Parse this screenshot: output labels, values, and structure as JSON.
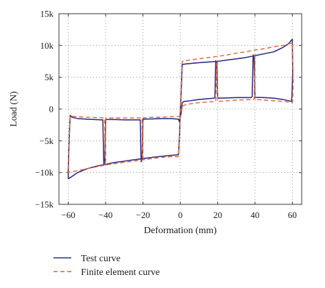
{
  "chart_data": {
    "type": "line",
    "title": "",
    "xlabel": "Deformation (mm)",
    "ylabel": "Load (N)",
    "xlim": [
      -65,
      65
    ],
    "ylim": [
      -15000,
      15000
    ],
    "xticks": [
      -60,
      -40,
      -20,
      0,
      20,
      40,
      60
    ],
    "xtick_labels": [
      "−60",
      "−40",
      "−20",
      "0",
      "20",
      "40",
      "60"
    ],
    "yticks": [
      -15000,
      -10000,
      -5000,
      0,
      5000,
      10000,
      15000
    ],
    "ytick_labels": [
      "−15k",
      "−10k",
      "−5k",
      "0",
      "5k",
      "10k",
      "15k"
    ],
    "grid": true,
    "grid_style": "dotted",
    "legend_position": "bottom-left, below plot",
    "series": [
      {
        "name": "Test curve",
        "color": "#2e2d86",
        "style": "solid",
        "points": [
          [
            -60,
            -11000
          ],
          [
            -58,
            -10600
          ],
          [
            -55,
            -10000
          ],
          [
            -50,
            -9400
          ],
          [
            -45,
            -9000
          ],
          [
            -40,
            -8700
          ],
          [
            -35,
            -8400
          ],
          [
            -30,
            -8200
          ],
          [
            -25,
            -8000
          ],
          [
            -20,
            -7800
          ],
          [
            -15,
            -7600
          ],
          [
            -10,
            -7450
          ],
          [
            -5,
            -7300
          ],
          [
            -1,
            -7200
          ],
          [
            -0.5,
            -4500
          ],
          [
            0,
            -200
          ],
          [
            0.5,
            3000
          ],
          [
            1,
            7000
          ],
          [
            3,
            7100
          ],
          [
            10,
            7300
          ],
          [
            15,
            7400
          ],
          [
            20,
            7500
          ],
          [
            25,
            7700
          ],
          [
            30,
            7900
          ],
          [
            35,
            8100
          ],
          [
            40,
            8400
          ],
          [
            45,
            8700
          ],
          [
            50,
            9000
          ],
          [
            55,
            9700
          ],
          [
            58,
            10300
          ],
          [
            60,
            11000
          ],
          [
            60,
            10000
          ],
          [
            60.2,
            6000
          ],
          [
            59.8,
            2000
          ],
          [
            59.5,
            1200
          ],
          [
            55,
            1500
          ],
          [
            50,
            1700
          ],
          [
            45,
            1800
          ],
          [
            40,
            1850
          ],
          [
            39.5,
            8000
          ],
          [
            39,
            8500
          ],
          [
            38.5,
            2000
          ],
          [
            38,
            1800
          ],
          [
            30,
            1800
          ],
          [
            25,
            1750
          ],
          [
            20,
            1700
          ],
          [
            19.5,
            7300
          ],
          [
            19,
            7600
          ],
          [
            18.5,
            1800
          ],
          [
            18,
            1700
          ],
          [
            10,
            1500
          ],
          [
            5,
            1300
          ],
          [
            2,
            1200
          ],
          [
            1,
            1000
          ],
          [
            0.5,
            -500
          ],
          [
            0,
            -1200
          ],
          [
            -0.5,
            -2000
          ],
          [
            -1,
            -1600
          ],
          [
            -5,
            -1500
          ],
          [
            -10,
            -1500
          ],
          [
            -15,
            -1550
          ],
          [
            -20,
            -1600
          ],
          [
            -20.5,
            -8000
          ],
          [
            -21,
            -8300
          ],
          [
            -21.5,
            -1700
          ],
          [
            -22,
            -1700
          ],
          [
            -30,
            -1700
          ],
          [
            -35,
            -1650
          ],
          [
            -40,
            -1650
          ],
          [
            -40.5,
            -8500
          ],
          [
            -41,
            -8700
          ],
          [
            -41.5,
            -1700
          ],
          [
            -42,
            -1700
          ],
          [
            -50,
            -1600
          ],
          [
            -55,
            -1500
          ],
          [
            -58,
            -1300
          ],
          [
            -59,
            -1000
          ],
          [
            -59.5,
            -4500
          ],
          [
            -60,
            -9000
          ],
          [
            -60,
            -11000
          ]
        ]
      },
      {
        "name": "Finite element curve",
        "color": "#e06030",
        "style": "dashed",
        "points": [
          [
            -61,
            -10000
          ],
          [
            -55,
            -9700
          ],
          [
            -50,
            -9400
          ],
          [
            -45,
            -9100
          ],
          [
            -40,
            -8800
          ],
          [
            -35,
            -8600
          ],
          [
            -30,
            -8400
          ],
          [
            -25,
            -8200
          ],
          [
            -20,
            -8000
          ],
          [
            -15,
            -7800
          ],
          [
            -10,
            -7600
          ],
          [
            -5,
            -7500
          ],
          [
            -1,
            -7500
          ],
          [
            0,
            -1000
          ],
          [
            0.5,
            4000
          ],
          [
            1,
            7500
          ],
          [
            5,
            7700
          ],
          [
            10,
            7900
          ],
          [
            15,
            8100
          ],
          [
            20,
            8300
          ],
          [
            25,
            8500
          ],
          [
            30,
            8800
          ],
          [
            35,
            9000
          ],
          [
            40,
            9300
          ],
          [
            45,
            9500
          ],
          [
            50,
            9800
          ],
          [
            55,
            10000
          ],
          [
            60,
            10400
          ],
          [
            60,
            9000
          ],
          [
            60.5,
            4000
          ],
          [
            60,
            1000
          ],
          [
            55,
            1200
          ],
          [
            50,
            1300
          ],
          [
            45,
            1400
          ],
          [
            40,
            1500
          ],
          [
            40,
            5000
          ],
          [
            40,
            8800
          ],
          [
            39.5,
            1500
          ],
          [
            30,
            1400
          ],
          [
            25,
            1300
          ],
          [
            20,
            1200
          ],
          [
            19.8,
            7500
          ],
          [
            19.5,
            7600
          ],
          [
            19,
            1200
          ],
          [
            10,
            1000
          ],
          [
            5,
            800
          ],
          [
            2,
            600
          ],
          [
            1,
            400
          ],
          [
            0,
            -500
          ],
          [
            -0.5,
            -1200
          ],
          [
            -1,
            -1200
          ],
          [
            -5,
            -1200
          ],
          [
            -10,
            -1300
          ],
          [
            -15,
            -1300
          ],
          [
            -20,
            -1400
          ],
          [
            -20,
            -8000
          ],
          [
            -20.3,
            -8000
          ],
          [
            -20.5,
            -1400
          ],
          [
            -30,
            -1400
          ],
          [
            -35,
            -1400
          ],
          [
            -40,
            -1400
          ],
          [
            -40,
            -8700
          ],
          [
            -40.3,
            -8800
          ],
          [
            -40.5,
            -1400
          ],
          [
            -50,
            -1300
          ],
          [
            -55,
            -1200
          ],
          [
            -59,
            -1100
          ],
          [
            -59.5,
            -5000
          ],
          [
            -60,
            -9800
          ],
          [
            -61,
            -10000
          ]
        ]
      }
    ]
  }
}
